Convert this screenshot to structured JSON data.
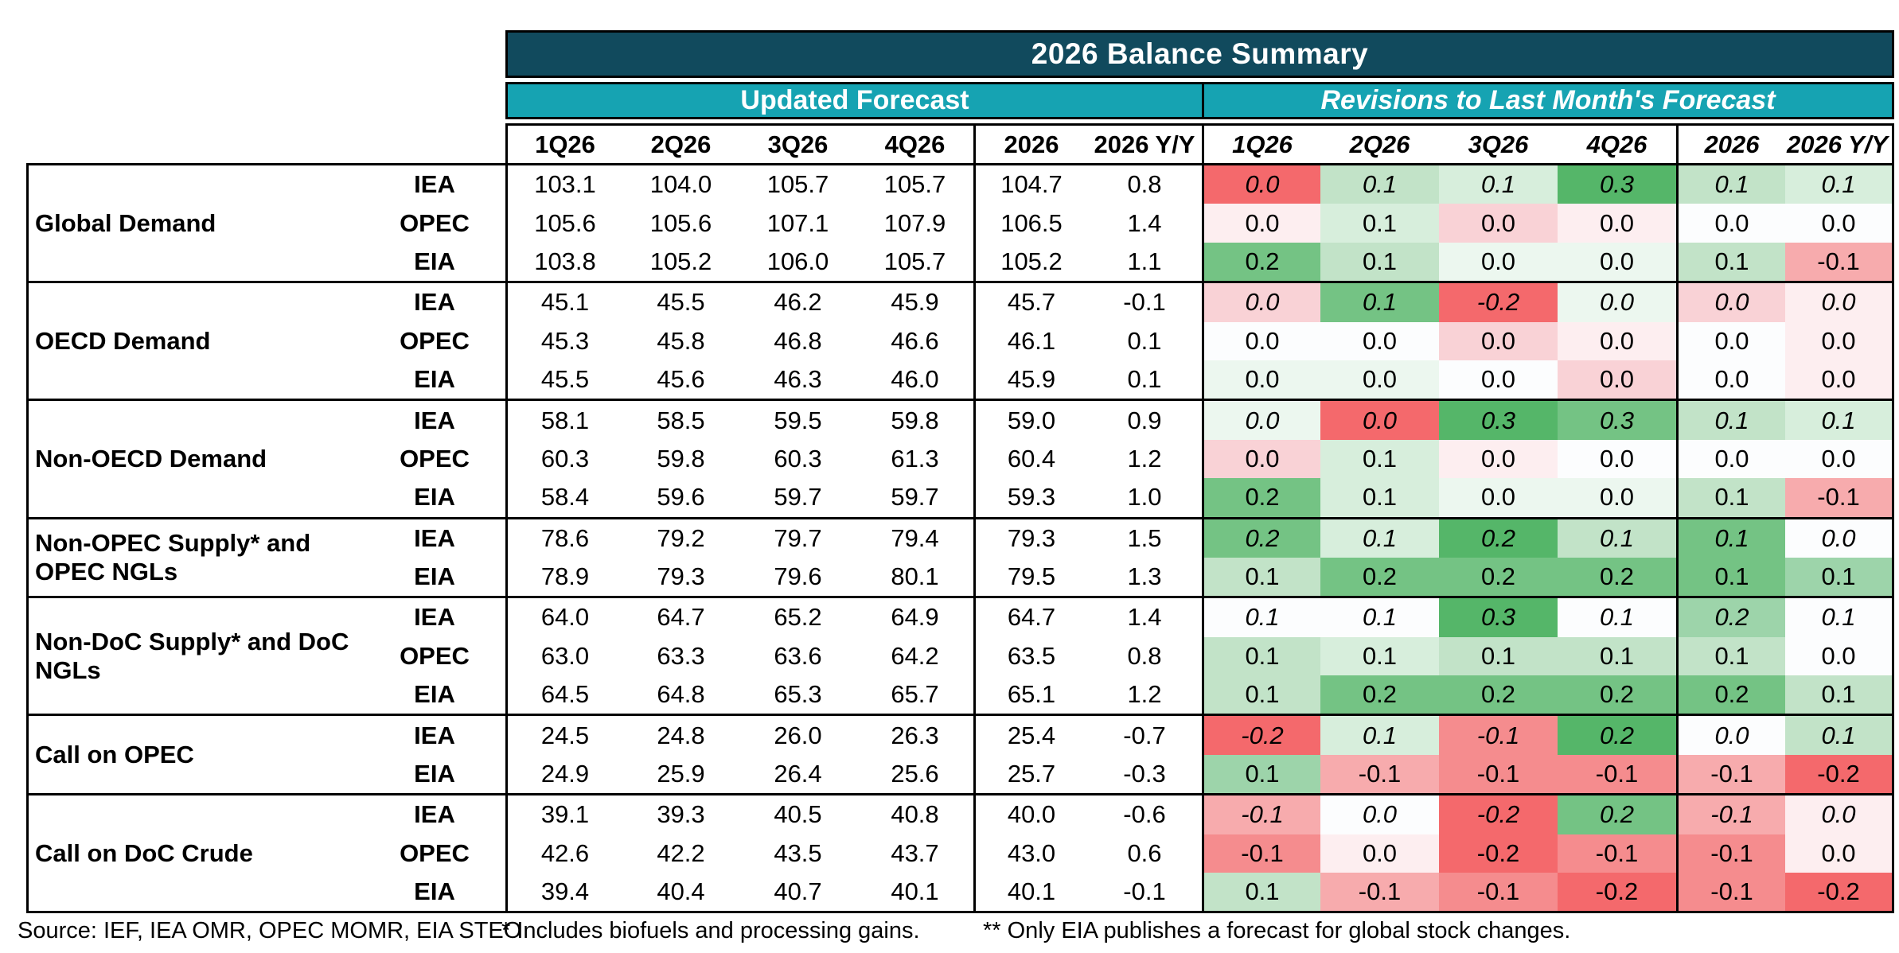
{
  "title": "2026 Balance Summary",
  "sections": {
    "updated": "Updated Forecast",
    "revisions": "Revisions to Last Month's Forecast"
  },
  "column_headers": [
    "1Q26",
    "2Q26",
    "3Q26",
    "4Q26",
    "2026",
    "2026 Y/Y"
  ],
  "colors": {
    "header_dark": "#114a5d",
    "header_teal": "#16a3b2",
    "border": "#000000",
    "palette": {
      "R3": "#f4696c",
      "R2": "#f58c8e",
      "R1": "#f7abad",
      "P1": "#f9d2d6",
      "P0": "#fdeef0",
      "W": "#fcfdfe",
      "G0": "#ecf7ef",
      "G1L": "#d7eedc",
      "G1": "#c2e3c8",
      "G2L": "#9dd4aa",
      "G2": "#74c384",
      "G3": "#55b669"
    }
  },
  "groups": [
    {
      "label": "Global Demand",
      "rows": [
        {
          "agency": "IEA",
          "updated": [
            "103.1",
            "104.0",
            "105.7",
            "105.7",
            "104.7",
            "0.8"
          ],
          "revisions": [
            {
              "v": "0.0",
              "c": "R3"
            },
            {
              "v": "0.1",
              "c": "G1"
            },
            {
              "v": "0.1",
              "c": "G1L"
            },
            {
              "v": "0.3",
              "c": "G3"
            },
            {
              "v": "0.1",
              "c": "G1"
            },
            {
              "v": "0.1",
              "c": "G1L"
            }
          ]
        },
        {
          "agency": "OPEC",
          "updated": [
            "105.6",
            "105.6",
            "107.1",
            "107.9",
            "106.5",
            "1.4"
          ],
          "revisions": [
            {
              "v": "0.0",
              "c": "P0"
            },
            {
              "v": "0.1",
              "c": "G1L"
            },
            {
              "v": "0.0",
              "c": "P1"
            },
            {
              "v": "0.0",
              "c": "P0"
            },
            {
              "v": "0.0",
              "c": "W"
            },
            {
              "v": "0.0",
              "c": "W"
            }
          ]
        },
        {
          "agency": "EIA",
          "updated": [
            "103.8",
            "105.2",
            "106.0",
            "105.7",
            "105.2",
            "1.1"
          ],
          "revisions": [
            {
              "v": "0.2",
              "c": "G2"
            },
            {
              "v": "0.1",
              "c": "G1"
            },
            {
              "v": "0.0",
              "c": "G0"
            },
            {
              "v": "0.0",
              "c": "G0"
            },
            {
              "v": "0.1",
              "c": "G1"
            },
            {
              "v": "-0.1",
              "c": "R1"
            }
          ]
        }
      ]
    },
    {
      "label": "OECD Demand",
      "rows": [
        {
          "agency": "IEA",
          "updated": [
            "45.1",
            "45.5",
            "46.2",
            "45.9",
            "45.7",
            "-0.1"
          ],
          "revisions": [
            {
              "v": "0.0",
              "c": "P1"
            },
            {
              "v": "0.1",
              "c": "G2"
            },
            {
              "v": "-0.2",
              "c": "R3"
            },
            {
              "v": "0.0",
              "c": "G0"
            },
            {
              "v": "0.0",
              "c": "P1"
            },
            {
              "v": "0.0",
              "c": "P0"
            }
          ]
        },
        {
          "agency": "OPEC",
          "updated": [
            "45.3",
            "45.8",
            "46.8",
            "46.6",
            "46.1",
            "0.1"
          ],
          "revisions": [
            {
              "v": "0.0",
              "c": "W"
            },
            {
              "v": "0.0",
              "c": "W"
            },
            {
              "v": "0.0",
              "c": "P1"
            },
            {
              "v": "0.0",
              "c": "P0"
            },
            {
              "v": "0.0",
              "c": "W"
            },
            {
              "v": "0.0",
              "c": "P0"
            }
          ]
        },
        {
          "agency": "EIA",
          "updated": [
            "45.5",
            "45.6",
            "46.3",
            "46.0",
            "45.9",
            "0.1"
          ],
          "revisions": [
            {
              "v": "0.0",
              "c": "G0"
            },
            {
              "v": "0.0",
              "c": "G0"
            },
            {
              "v": "0.0",
              "c": "W"
            },
            {
              "v": "0.0",
              "c": "P1"
            },
            {
              "v": "0.0",
              "c": "W"
            },
            {
              "v": "0.0",
              "c": "P0"
            }
          ]
        }
      ]
    },
    {
      "label": "Non-OECD Demand",
      "rows": [
        {
          "agency": "IEA",
          "updated": [
            "58.1",
            "58.5",
            "59.5",
            "59.8",
            "59.0",
            "0.9"
          ],
          "revisions": [
            {
              "v": "0.0",
              "c": "G0"
            },
            {
              "v": "0.0",
              "c": "R3"
            },
            {
              "v": "0.3",
              "c": "G3"
            },
            {
              "v": "0.3",
              "c": "G2"
            },
            {
              "v": "0.1",
              "c": "G1"
            },
            {
              "v": "0.1",
              "c": "G1L"
            }
          ]
        },
        {
          "agency": "OPEC",
          "updated": [
            "60.3",
            "59.8",
            "60.3",
            "61.3",
            "60.4",
            "1.2"
          ],
          "revisions": [
            {
              "v": "0.0",
              "c": "P1"
            },
            {
              "v": "0.1",
              "c": "G1L"
            },
            {
              "v": "0.0",
              "c": "P0"
            },
            {
              "v": "0.0",
              "c": "W"
            },
            {
              "v": "0.0",
              "c": "W"
            },
            {
              "v": "0.0",
              "c": "W"
            }
          ]
        },
        {
          "agency": "EIA",
          "updated": [
            "58.4",
            "59.6",
            "59.7",
            "59.7",
            "59.3",
            "1.0"
          ],
          "revisions": [
            {
              "v": "0.2",
              "c": "G2"
            },
            {
              "v": "0.1",
              "c": "G1L"
            },
            {
              "v": "0.0",
              "c": "G0"
            },
            {
              "v": "0.0",
              "c": "G0"
            },
            {
              "v": "0.1",
              "c": "G1"
            },
            {
              "v": "-0.1",
              "c": "R1"
            }
          ]
        }
      ]
    },
    {
      "label": "Non-OPEC Supply* and OPEC NGLs",
      "rows": [
        {
          "agency": "IEA",
          "updated": [
            "78.6",
            "79.2",
            "79.7",
            "79.4",
            "79.3",
            "1.5"
          ],
          "revisions": [
            {
              "v": "0.2",
              "c": "G2"
            },
            {
              "v": "0.1",
              "c": "G1L"
            },
            {
              "v": "0.2",
              "c": "G3"
            },
            {
              "v": "0.1",
              "c": "G1"
            },
            {
              "v": "0.1",
              "c": "G2"
            },
            {
              "v": "0.0",
              "c": "W"
            }
          ]
        },
        {
          "agency": "EIA",
          "updated": [
            "78.9",
            "79.3",
            "79.6",
            "80.1",
            "79.5",
            "1.3"
          ],
          "revisions": [
            {
              "v": "0.1",
              "c": "G1"
            },
            {
              "v": "0.2",
              "c": "G2"
            },
            {
              "v": "0.2",
              "c": "G2"
            },
            {
              "v": "0.2",
              "c": "G2"
            },
            {
              "v": "0.1",
              "c": "G2"
            },
            {
              "v": "0.1",
              "c": "G2L"
            }
          ]
        }
      ]
    },
    {
      "label": "Non-DoC Supply* and DoC NGLs",
      "rows": [
        {
          "agency": "IEA",
          "updated": [
            "64.0",
            "64.7",
            "65.2",
            "64.9",
            "64.7",
            "1.4"
          ],
          "revisions": [
            {
              "v": "0.1",
              "c": "W"
            },
            {
              "v": "0.1",
              "c": "W"
            },
            {
              "v": "0.3",
              "c": "G3"
            },
            {
              "v": "0.1",
              "c": "W"
            },
            {
              "v": "0.2",
              "c": "G2L"
            },
            {
              "v": "0.1",
              "c": "W"
            }
          ]
        },
        {
          "agency": "OPEC",
          "updated": [
            "63.0",
            "63.3",
            "63.6",
            "64.2",
            "63.5",
            "0.8"
          ],
          "revisions": [
            {
              "v": "0.1",
              "c": "G1"
            },
            {
              "v": "0.1",
              "c": "G1L"
            },
            {
              "v": "0.1",
              "c": "G1"
            },
            {
              "v": "0.1",
              "c": "G1"
            },
            {
              "v": "0.1",
              "c": "G1"
            },
            {
              "v": "0.0",
              "c": "W"
            }
          ]
        },
        {
          "agency": "EIA",
          "updated": [
            "64.5",
            "64.8",
            "65.3",
            "65.7",
            "65.1",
            "1.2"
          ],
          "revisions": [
            {
              "v": "0.1",
              "c": "G1"
            },
            {
              "v": "0.2",
              "c": "G2"
            },
            {
              "v": "0.2",
              "c": "G2"
            },
            {
              "v": "0.2",
              "c": "G2"
            },
            {
              "v": "0.2",
              "c": "G2"
            },
            {
              "v": "0.1",
              "c": "G1"
            }
          ]
        }
      ]
    },
    {
      "label": "Call on OPEC",
      "rows": [
        {
          "agency": "IEA",
          "updated": [
            "24.5",
            "24.8",
            "26.0",
            "26.3",
            "25.4",
            "-0.7"
          ],
          "revisions": [
            {
              "v": "-0.2",
              "c": "R3"
            },
            {
              "v": "0.1",
              "c": "G1L"
            },
            {
              "v": "-0.1",
              "c": "R2"
            },
            {
              "v": "0.2",
              "c": "G3"
            },
            {
              "v": "0.0",
              "c": "W"
            },
            {
              "v": "0.1",
              "c": "G1"
            }
          ]
        },
        {
          "agency": "EIA",
          "updated": [
            "24.9",
            "25.9",
            "26.4",
            "25.6",
            "25.7",
            "-0.3"
          ],
          "revisions": [
            {
              "v": "0.1",
              "c": "G2L"
            },
            {
              "v": "-0.1",
              "c": "R1"
            },
            {
              "v": "-0.1",
              "c": "R2"
            },
            {
              "v": "-0.1",
              "c": "R2"
            },
            {
              "v": "-0.1",
              "c": "R1"
            },
            {
              "v": "-0.2",
              "c": "R3"
            }
          ]
        }
      ]
    },
    {
      "label": "Call on DoC Crude",
      "rows": [
        {
          "agency": "IEA",
          "updated": [
            "39.1",
            "39.3",
            "40.5",
            "40.8",
            "40.0",
            "-0.6"
          ],
          "revisions": [
            {
              "v": "-0.1",
              "c": "R1"
            },
            {
              "v": "0.0",
              "c": "W"
            },
            {
              "v": "-0.2",
              "c": "R3"
            },
            {
              "v": "0.2",
              "c": "G2"
            },
            {
              "v": "-0.1",
              "c": "R1"
            },
            {
              "v": "0.0",
              "c": "P0"
            }
          ]
        },
        {
          "agency": "OPEC",
          "updated": [
            "42.6",
            "42.2",
            "43.5",
            "43.7",
            "43.0",
            "0.6"
          ],
          "revisions": [
            {
              "v": "-0.1",
              "c": "R2"
            },
            {
              "v": "0.0",
              "c": "P0"
            },
            {
              "v": "-0.2",
              "c": "R3"
            },
            {
              "v": "-0.1",
              "c": "R2"
            },
            {
              "v": "-0.1",
              "c": "R2"
            },
            {
              "v": "0.0",
              "c": "P0"
            }
          ]
        },
        {
          "agency": "EIA",
          "updated": [
            "39.4",
            "40.4",
            "40.7",
            "40.1",
            "40.1",
            "-0.1"
          ],
          "revisions": [
            {
              "v": "0.1",
              "c": "G1"
            },
            {
              "v": "-0.1",
              "c": "R1"
            },
            {
              "v": "-0.1",
              "c": "R2"
            },
            {
              "v": "-0.2",
              "c": "R3"
            },
            {
              "v": "-0.1",
              "c": "R2"
            },
            {
              "v": "-0.2",
              "c": "R3"
            }
          ]
        }
      ]
    }
  ],
  "footer": {
    "source": "Source: IEF, IEA OMR, OPEC MOMR, EIA STEO",
    "note1": "* Includes biofuels and processing gains.",
    "note2": "** Only EIA publishes a forecast for global stock changes."
  }
}
